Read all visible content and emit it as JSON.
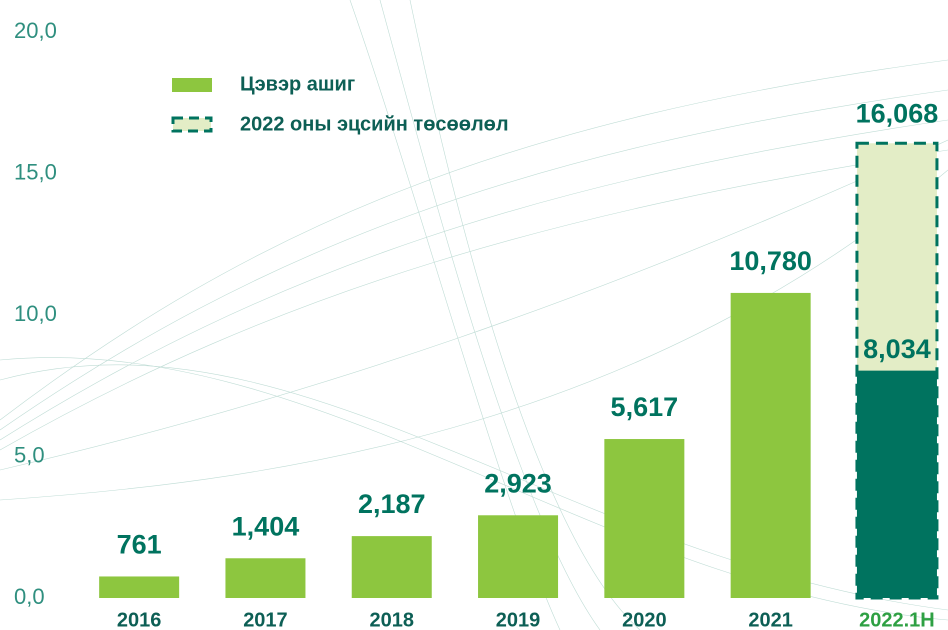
{
  "chart_data": {
    "type": "bar",
    "categories": [
      "2016",
      "2017",
      "2018",
      "2019",
      "2020",
      "2021",
      "2022.1H"
    ],
    "series": [
      {
        "name": "Цэвэр ашиг",
        "colors": [
          "#8dc63f",
          "#8dc63f",
          "#8dc63f",
          "#8dc63f",
          "#8dc63f",
          "#8dc63f",
          "#00735f"
        ],
        "values": [
          761,
          1404,
          2187,
          2923,
          5617,
          10780,
          8034
        ],
        "value_labels": [
          "761",
          "1,404",
          "2,187",
          "2,923",
          "5,617",
          "10,780",
          "8,034"
        ]
      },
      {
        "name": "2022 оны эцсийн төсөөлөл",
        "color": "#e3edc6",
        "border_color": "#00735f",
        "dashed": true,
        "values": [
          null,
          null,
          null,
          null,
          null,
          null,
          16068
        ],
        "value_labels": [
          null,
          null,
          null,
          null,
          null,
          null,
          "16,068"
        ]
      }
    ],
    "ylim": [
      0,
      20000
    ],
    "yticks": [
      {
        "value": 0,
        "label": "0,0"
      },
      {
        "value": 5000,
        "label": "5,0"
      },
      {
        "value": 10000,
        "label": "10,0"
      },
      {
        "value": 15000,
        "label": "15,0"
      },
      {
        "value": 20000,
        "label": "20,0"
      }
    ],
    "grid": false
  }
}
